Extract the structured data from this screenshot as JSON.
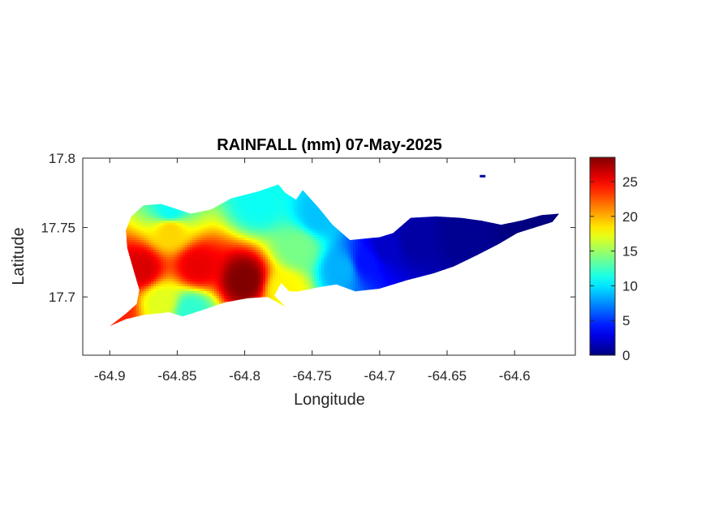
{
  "chart_data": {
    "type": "heatmap",
    "title": "RAINFALL (mm) 07-May-2025",
    "xlabel": "Longitude",
    "ylabel": "Latitude",
    "xlim": [
      -64.92,
      -64.555
    ],
    "ylim": [
      17.658,
      17.8
    ],
    "x_ticks": [
      -64.9,
      -64.85,
      -64.8,
      -64.75,
      -64.7,
      -64.65,
      -64.6
    ],
    "x_tick_labels": [
      "-64.9",
      "-64.85",
      "-64.8",
      "-64.75",
      "-64.7",
      "-64.65",
      "-64.6"
    ],
    "y_ticks": [
      17.7,
      17.75,
      17.8
    ],
    "y_tick_labels": [
      "17.7",
      "17.75",
      "17.8"
    ],
    "colormap": "jet",
    "clim": [
      0,
      28.5
    ],
    "colorbar_ticks": [
      0,
      5,
      10,
      15,
      20,
      25
    ],
    "colorbar_tick_labels": [
      "0",
      "5",
      "10",
      "15",
      "20",
      "25"
    ],
    "grid": false,
    "island_outline": [
      [
        -64.9,
        17.679
      ],
      [
        -64.888,
        17.688
      ],
      [
        -64.88,
        17.695
      ],
      [
        -64.878,
        17.705
      ],
      [
        -64.882,
        17.718
      ],
      [
        -64.887,
        17.735
      ],
      [
        -64.888,
        17.748
      ],
      [
        -64.884,
        17.758
      ],
      [
        -64.875,
        17.766
      ],
      [
        -64.862,
        17.767
      ],
      [
        -64.84,
        17.76
      ],
      [
        -64.825,
        17.763
      ],
      [
        -64.81,
        17.771
      ],
      [
        -64.79,
        17.776
      ],
      [
        -64.775,
        17.781
      ],
      [
        -64.77,
        17.775
      ],
      [
        -64.762,
        17.77
      ],
      [
        -64.757,
        17.777
      ],
      [
        -64.745,
        17.764
      ],
      [
        -64.735,
        17.752
      ],
      [
        -64.722,
        17.741
      ],
      [
        -64.7,
        17.743
      ],
      [
        -64.69,
        17.746
      ],
      [
        -64.677,
        17.757
      ],
      [
        -64.658,
        17.758
      ],
      [
        -64.64,
        17.757
      ],
      [
        -64.625,
        17.755
      ],
      [
        -64.61,
        17.752
      ],
      [
        -64.595,
        17.755
      ],
      [
        -64.58,
        17.759
      ],
      [
        -64.567,
        17.76
      ],
      [
        -64.572,
        17.754
      ],
      [
        -64.598,
        17.746
      ],
      [
        -64.612,
        17.738
      ],
      [
        -64.628,
        17.73
      ],
      [
        -64.645,
        17.722
      ],
      [
        -64.66,
        17.717
      ],
      [
        -64.68,
        17.712
      ],
      [
        -64.7,
        17.706
      ],
      [
        -64.718,
        17.704
      ],
      [
        -64.732,
        17.709
      ],
      [
        -64.745,
        17.707
      ],
      [
        -64.76,
        17.704
      ],
      [
        -64.767,
        17.704
      ],
      [
        -64.773,
        17.71
      ],
      [
        -64.778,
        17.701
      ],
      [
        -64.77,
        17.693
      ],
      [
        -64.783,
        17.7
      ],
      [
        -64.798,
        17.699
      ],
      [
        -64.815,
        17.696
      ],
      [
        -64.833,
        17.69
      ],
      [
        -64.846,
        17.686
      ],
      [
        -64.856,
        17.689
      ],
      [
        -64.875,
        17.687
      ],
      [
        -64.888,
        17.684
      ]
    ],
    "rainfall_centers": [
      {
        "lon": -64.8,
        "lat": 17.712,
        "value": 28.5
      },
      {
        "lon": -64.835,
        "lat": 17.722,
        "value": 25.5
      },
      {
        "lon": -64.877,
        "lat": 17.72,
        "value": 26.0
      },
      {
        "lon": -64.895,
        "lat": 17.69,
        "value": 24.0
      },
      {
        "lon": -64.855,
        "lat": 17.748,
        "value": 19.0
      },
      {
        "lon": -64.862,
        "lat": 17.696,
        "value": 17.0
      },
      {
        "lon": -64.84,
        "lat": 17.69,
        "value": 12.0
      },
      {
        "lon": -64.855,
        "lat": 17.762,
        "value": 11.0
      },
      {
        "lon": -64.79,
        "lat": 17.768,
        "value": 11.0
      },
      {
        "lon": -64.76,
        "lat": 17.735,
        "value": 14.0
      },
      {
        "lon": -64.77,
        "lat": 17.705,
        "value": 18.0
      },
      {
        "lon": -64.745,
        "lat": 17.758,
        "value": 9.0
      },
      {
        "lon": -64.728,
        "lat": 17.72,
        "value": 8.5
      },
      {
        "lon": -64.71,
        "lat": 17.725,
        "value": 4.0
      },
      {
        "lon": -64.695,
        "lat": 17.735,
        "value": 2.0
      },
      {
        "lon": -64.675,
        "lat": 17.74,
        "value": 1.0
      },
      {
        "lon": -64.64,
        "lat": 17.745,
        "value": 0.5
      },
      {
        "lon": -64.59,
        "lat": 17.752,
        "value": 0.0
      }
    ],
    "islet": [
      -64.624,
      17.787
    ]
  }
}
